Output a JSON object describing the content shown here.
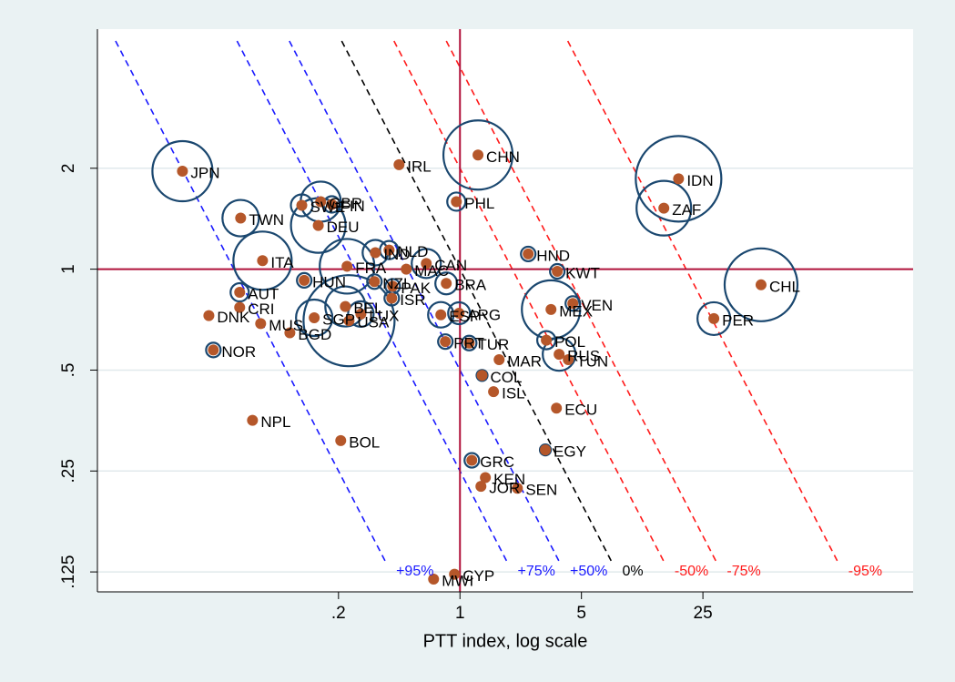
{
  "chart_data": {
    "type": "scatter",
    "x_label": "PTT index, log scale",
    "point_labels": [
      "JPN",
      "IRL",
      "CHN",
      "IDN",
      "ZAF",
      "PHL",
      "SWE",
      "GBR",
      "FIN",
      "DEU",
      "TWN",
      "HND",
      "NLD",
      "IND",
      "ITA",
      "FRA",
      "MAC",
      "CAN",
      "KWT",
      "HUN",
      "NZL",
      "PAK",
      "BRA",
      "CHL",
      "AUT",
      "ISR",
      "VEN",
      "MEX",
      "CRI",
      "DNK",
      "ESP",
      "ARG",
      "PER",
      "BEL",
      "SGP",
      "LUX",
      "USA",
      "MUS",
      "BGD",
      "PRT",
      "TUR",
      "POL",
      "NOR",
      "MAR",
      "RUS",
      "TUN",
      "COL",
      "ISL",
      "ECU",
      "NPL",
      "BOL",
      "EGY",
      "GRC",
      "KEN",
      "JOR",
      "SEN",
      "CYP",
      "MWI"
    ],
    "x": [
      0.0253,
      0.446,
      1.27,
      18.1,
      14.9,
      0.953,
      0.123,
      0.158,
      0.183,
      0.153,
      0.0547,
      2.47,
      0.391,
      0.326,
      0.0731,
      0.224,
      0.491,
      0.64,
      3.63,
      0.127,
      0.322,
      0.41,
      0.834,
      54,
      0.054,
      0.405,
      4.46,
      3.34,
      0.054,
      0.0359,
      0.776,
      0.988,
      28.9,
      0.219,
      0.145,
      0.269,
      0.23,
      0.0713,
      0.105,
      0.824,
      1.13,
      3.14,
      0.0381,
      1.68,
      3.72,
      4.2,
      1.34,
      1.56,
      3.59,
      0.064,
      0.206,
      3.1,
      1.17,
      1.4,
      1.32,
      2.14,
      0.93,
      0.705
    ],
    "values": [
      1.96,
      2.05,
      2.19,
      1.86,
      1.52,
      1.59,
      1.55,
      1.59,
      1.56,
      1.35,
      1.42,
      1.11,
      1.14,
      1.12,
      1.06,
      1.02,
      1.0,
      1.04,
      0.985,
      0.926,
      0.918,
      0.889,
      0.907,
      0.898,
      0.853,
      0.819,
      0.79,
      0.758,
      0.769,
      0.727,
      0.731,
      0.739,
      0.712,
      0.774,
      0.716,
      0.735,
      0.702,
      0.688,
      0.646,
      0.608,
      0.602,
      0.614,
      0.574,
      0.537,
      0.557,
      0.537,
      0.482,
      0.431,
      0.385,
      0.354,
      0.308,
      0.289,
      0.269,
      0.239,
      0.225,
      0.222,
      0.123,
      0.119
    ],
    "sizes": [
      33,
      null,
      38,
      47,
      30,
      10,
      12,
      22,
      9,
      30,
      20,
      8,
      10,
      14,
      32,
      30,
      null,
      16,
      8,
      8,
      8,
      8,
      12,
      40,
      10,
      8,
      8,
      32,
      null,
      null,
      14,
      12,
      18,
      22,
      20,
      14,
      50,
      null,
      null,
      8,
      8,
      10,
      8,
      null,
      18,
      null,
      6,
      null,
      null,
      null,
      null,
      6,
      8,
      null,
      null,
      null,
      null,
      null
    ],
    "marker_color": "#b5572a",
    "bubble_color": "#1a476f",
    "xscale": "log",
    "yscale": "log",
    "xlim": [
      0.0082,
      405
    ],
    "ylim": [
      0.109,
      5.2
    ],
    "xticks": [
      {
        "value": 0.2,
        "label": ".2"
      },
      1,
      5,
      25
    ],
    "yticks": [
      {
        "value": 0.125,
        "label": ".125"
      },
      {
        "value": 0.25,
        "label": ".25"
      },
      {
        "value": 0.5,
        "label": ".5"
      },
      1,
      2
    ],
    "grid": true,
    "hline": 1,
    "vline": 1,
    "ref_color": "#b0103a",
    "reference_lines": [
      {
        "label": "+95%",
        "product": 0.05,
        "color": "#1a1aff"
      },
      {
        "label": "+75%",
        "product": 0.25,
        "color": "#1a1aff"
      },
      {
        "label": "+50%",
        "product": 0.5,
        "color": "#1a1aff"
      },
      {
        "label": "0%",
        "product": 1,
        "color": "#000000"
      },
      {
        "label": "-50%",
        "product": 2,
        "color": "#ff1a1a"
      },
      {
        "label": "-75%",
        "product": 4,
        "color": "#ff1a1a"
      },
      {
        "label": "-95%",
        "product": 20,
        "color": "#ff1a1a"
      }
    ]
  }
}
